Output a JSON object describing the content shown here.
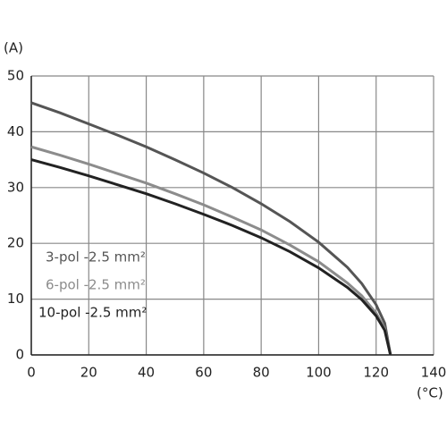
{
  "chart_data": {
    "type": "line",
    "xlabel": "(°C)",
    "ylabel": "(A)",
    "x": [
      0,
      10,
      20,
      30,
      40,
      50,
      60,
      70,
      80,
      90,
      100,
      110,
      115,
      120,
      123,
      125
    ],
    "series": [
      {
        "name": "3-pol -2.5 mm²",
        "color": "#555555",
        "values": [
          45.2,
          43.4,
          41.4,
          39.4,
          37.3,
          35,
          32.6,
          30,
          27.1,
          23.9,
          20.2,
          15.7,
          12.8,
          9,
          5.7,
          0
        ]
      },
      {
        "name": "6-pol -2.5 mm²",
        "color": "#8c8c8c",
        "values": [
          37.3,
          35.8,
          34.2,
          32.5,
          30.8,
          28.9,
          26.9,
          24.7,
          22.4,
          19.7,
          16.7,
          12.9,
          10.6,
          7.5,
          4.7,
          0
        ]
      },
      {
        "name": "10-pol -2.5 mm²",
        "color": "#222222",
        "values": [
          35,
          33.6,
          32.1,
          30.5,
          28.9,
          27.1,
          25.2,
          23.2,
          21,
          18.5,
          15.6,
          12.1,
          9.9,
          7,
          4.4,
          0
        ]
      }
    ],
    "xlim": [
      0,
      140
    ],
    "xticks": [
      0,
      20,
      40,
      60,
      80,
      100,
      120,
      140
    ],
    "ylim": [
      0,
      50
    ],
    "yticks": [
      0,
      10,
      20,
      30,
      40,
      50
    ],
    "grid": true,
    "legend": "lower left"
  }
}
